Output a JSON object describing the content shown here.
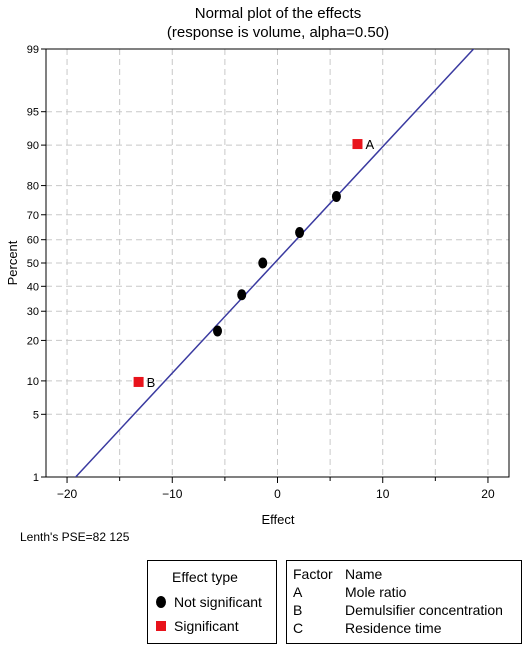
{
  "chart_data": {
    "type": "scatter",
    "title": "Normal plot of the effects",
    "subtitle": "(response is volume, alpha=0.50)",
    "xlabel": "Effect",
    "ylabel": "Percent",
    "xlim": [
      -22,
      22
    ],
    "x_ticks": [
      -20,
      -10,
      0,
      10,
      20
    ],
    "y_ticks": [
      1,
      5,
      10,
      20,
      30,
      40,
      50,
      60,
      70,
      80,
      90,
      95,
      99
    ],
    "ylim": [
      1,
      99
    ],
    "y_scale": "normal-probability",
    "grid": true,
    "fit_line": {
      "x": [
        -19.5,
        19.3
      ],
      "y": [
        0.9,
        99.2
      ]
    },
    "points": [
      {
        "x": -13.2,
        "y": 9.8,
        "type": "Significant",
        "label": "B"
      },
      {
        "x": -5.7,
        "y": 23,
        "type": "Not significant",
        "label": ""
      },
      {
        "x": -3.4,
        "y": 36.5,
        "type": "Not significant",
        "label": ""
      },
      {
        "x": -1.4,
        "y": 50,
        "type": "Not significant",
        "label": ""
      },
      {
        "x": 2.1,
        "y": 63,
        "type": "Not significant",
        "label": ""
      },
      {
        "x": 5.6,
        "y": 76.5,
        "type": "Not significant",
        "label": ""
      },
      {
        "x": 7.6,
        "y": 90.2,
        "type": "Significant",
        "label": "A"
      }
    ],
    "colors": {
      "fit_line": "#3a3aa0",
      "not_significant": "#000000",
      "significant": "#e8131b",
      "grid": "#c8c8c8"
    }
  },
  "footnote": "Lenth's PSE=82 125",
  "legend": {
    "title": "Effect type",
    "items": [
      {
        "label": "Not significant",
        "symbol": "circle"
      },
      {
        "label": "Significant",
        "symbol": "square"
      }
    ]
  },
  "factor_table": {
    "header_factor": "Factor",
    "header_name": "Name",
    "rows": [
      {
        "code": "A",
        "name": "Mole ratio"
      },
      {
        "code": "B",
        "name": "Demulsifier concentration"
      },
      {
        "code": "C",
        "name": "Residence time"
      }
    ]
  }
}
